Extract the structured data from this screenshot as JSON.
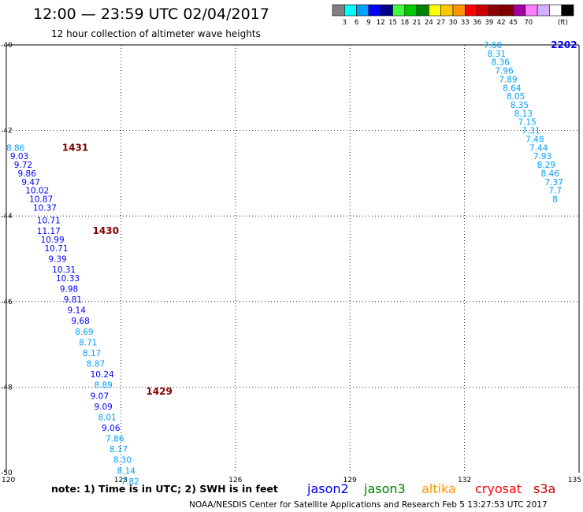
{
  "header": {
    "title": "12:00 — 23:59 UTC 02/04/2017",
    "subtitle": "12 hour collection of altimeter wave heights"
  },
  "color_scale": {
    "colors": [
      "#808080",
      "#00ffff",
      "#00a0ff",
      "#0000ff",
      "#00008b",
      "#40ff40",
      "#00c800",
      "#008200",
      "#ffff00",
      "#ffc800",
      "#ff9600",
      "#ff0000",
      "#c80000",
      "#8b0000",
      "#800000",
      "#a000a0",
      "#ff80ff",
      "#d0b0ff",
      "#ffffff",
      "#000000"
    ],
    "labels": [
      "3",
      "6",
      "9",
      "12",
      "15",
      "18",
      "21",
      "24",
      "27",
      "30",
      "33",
      "36",
      "39",
      "42",
      "45",
      "70"
    ],
    "unit": "(ft)"
  },
  "map": {
    "lat_labels": [
      "-40",
      "-42",
      "-44",
      "-46",
      "-48",
      "-50"
    ],
    "lon_labels": [
      "120",
      "123",
      "126",
      "129",
      "132",
      "135"
    ]
  },
  "passes": [
    {
      "label": "2202",
      "color": "#0000ff",
      "lat": -40.0,
      "lon": 133.6
    },
    {
      "label": "1431",
      "color": "#800000",
      "lat": -42.4,
      "lon": 120.8
    },
    {
      "label": "1430",
      "color": "#800000",
      "lat": -44.35,
      "lon": 121.6
    },
    {
      "label": "1429",
      "color": "#800000",
      "lat": -48.1,
      "lon": 123.0
    }
  ],
  "chart_data": {
    "type": "scatter",
    "title": "12:00 — 23:59 UTC 02/04/2017",
    "subtitle": "12 hour collection of altimeter wave heights",
    "xlim": [
      120,
      135
    ],
    "ylim": [
      -50,
      -40
    ],
    "series": [
      {
        "name": "2202",
        "points": [
          {
            "lat": -40.0,
            "lon": 132.5,
            "v": "7.60",
            "c": "#00a0ff"
          },
          {
            "lat": -40.2,
            "lon": 132.6,
            "v": "8.31",
            "c": "#00a0ff"
          },
          {
            "lat": -40.4,
            "lon": 132.7,
            "v": "8.36",
            "c": "#00a0ff"
          },
          {
            "lat": -40.6,
            "lon": 132.8,
            "v": "7.96",
            "c": "#00a0ff"
          },
          {
            "lat": -40.8,
            "lon": 132.9,
            "v": "7.89",
            "c": "#00a0ff"
          },
          {
            "lat": -41.0,
            "lon": 133.0,
            "v": "8.64",
            "c": "#00a0ff"
          },
          {
            "lat": -41.2,
            "lon": 133.1,
            "v": "8.05",
            "c": "#00a0ff"
          },
          {
            "lat": -41.4,
            "lon": 133.2,
            "v": "8.35",
            "c": "#00a0ff"
          },
          {
            "lat": -41.6,
            "lon": 133.3,
            "v": "8.13",
            "c": "#00a0ff"
          },
          {
            "lat": -41.8,
            "lon": 133.4,
            "v": "7.15",
            "c": "#00a0ff"
          },
          {
            "lat": -42.0,
            "lon": 133.5,
            "v": "7.31",
            "c": "#00a0ff"
          },
          {
            "lat": -42.2,
            "lon": 133.6,
            "v": "7.48",
            "c": "#00a0ff"
          },
          {
            "lat": -42.4,
            "lon": 133.7,
            "v": "7.44",
            "c": "#00a0ff"
          },
          {
            "lat": -42.6,
            "lon": 133.8,
            "v": "7.93",
            "c": "#00a0ff"
          },
          {
            "lat": -42.8,
            "lon": 133.9,
            "v": "8.29",
            "c": "#00a0ff"
          },
          {
            "lat": -43.0,
            "lon": 134.0,
            "v": "8.46",
            "c": "#00a0ff"
          },
          {
            "lat": -43.2,
            "lon": 134.1,
            "v": "7.37",
            "c": "#00a0ff"
          },
          {
            "lat": -43.4,
            "lon": 134.2,
            "v": "7.7",
            "c": "#00a0ff"
          },
          {
            "lat": -43.6,
            "lon": 134.3,
            "v": "8",
            "c": "#00a0ff"
          }
        ]
      },
      {
        "name": "1431",
        "points": [
          {
            "lat": -42.4,
            "lon": 120.0,
            "v": "8.86",
            "c": "#00a0ff"
          },
          {
            "lat": -42.6,
            "lon": 120.1,
            "v": "9.03",
            "c": "#0000ff"
          },
          {
            "lat": -42.8,
            "lon": 120.2,
            "v": "9.72",
            "c": "#0000ff"
          },
          {
            "lat": -43.0,
            "lon": 120.3,
            "v": "9.86",
            "c": "#0000ff"
          },
          {
            "lat": -43.2,
            "lon": 120.4,
            "v": "9.47",
            "c": "#0000ff"
          },
          {
            "lat": -43.4,
            "lon": 120.5,
            "v": "10.02",
            "c": "#0000ff"
          },
          {
            "lat": -43.6,
            "lon": 120.6,
            "v": "10.87",
            "c": "#0000ff"
          },
          {
            "lat": -43.8,
            "lon": 120.7,
            "v": "10.37",
            "c": "#0000ff"
          },
          {
            "lat": -44.1,
            "lon": 120.8,
            "v": "10.71",
            "c": "#0000ff"
          }
        ]
      },
      {
        "name": "1430",
        "points": [
          {
            "lat": -44.35,
            "lon": 120.8,
            "v": "11.17",
            "c": "#0000ff"
          },
          {
            "lat": -44.55,
            "lon": 120.9,
            "v": "10.99",
            "c": "#0000ff"
          },
          {
            "lat": -44.75,
            "lon": 121.0,
            "v": "10.71",
            "c": "#0000ff"
          },
          {
            "lat": -45.0,
            "lon": 121.1,
            "v": "9.39",
            "c": "#0000ff"
          },
          {
            "lat": -45.25,
            "lon": 121.2,
            "v": "10.31",
            "c": "#0000ff"
          },
          {
            "lat": -45.45,
            "lon": 121.3,
            "v": "10.33",
            "c": "#0000ff"
          },
          {
            "lat": -45.7,
            "lon": 121.4,
            "v": "9.98",
            "c": "#0000ff"
          },
          {
            "lat": -45.95,
            "lon": 121.5,
            "v": "9.81",
            "c": "#0000ff"
          },
          {
            "lat": -46.2,
            "lon": 121.6,
            "v": "9.14",
            "c": "#0000ff"
          },
          {
            "lat": -46.45,
            "lon": 121.7,
            "v": "9.68",
            "c": "#0000ff"
          },
          {
            "lat": -46.7,
            "lon": 121.8,
            "v": "8.69",
            "c": "#00a0ff"
          },
          {
            "lat": -46.95,
            "lon": 121.9,
            "v": "8.71",
            "c": "#00a0ff"
          },
          {
            "lat": -47.2,
            "lon": 122.0,
            "v": "8.17",
            "c": "#00a0ff"
          },
          {
            "lat": -47.45,
            "lon": 122.1,
            "v": "8.87",
            "c": "#00a0ff"
          },
          {
            "lat": -47.7,
            "lon": 122.2,
            "v": "10.24",
            "c": "#0000ff"
          },
          {
            "lat": -47.95,
            "lon": 122.3,
            "v": "8.89",
            "c": "#00a0ff"
          }
        ]
      },
      {
        "name": "1429",
        "points": [
          {
            "lat": -48.2,
            "lon": 122.2,
            "v": "9.07",
            "c": "#0000ff"
          },
          {
            "lat": -48.45,
            "lon": 122.3,
            "v": "9.09",
            "c": "#0000ff"
          },
          {
            "lat": -48.7,
            "lon": 122.4,
            "v": "8.01",
            "c": "#00a0ff"
          },
          {
            "lat": -48.95,
            "lon": 122.5,
            "v": "9.06",
            "c": "#0000ff"
          },
          {
            "lat": -49.2,
            "lon": 122.6,
            "v": "7.86",
            "c": "#00a0ff"
          },
          {
            "lat": -49.45,
            "lon": 122.7,
            "v": "8.17",
            "c": "#00a0ff"
          },
          {
            "lat": -49.7,
            "lon": 122.8,
            "v": "8.30",
            "c": "#00a0ff"
          },
          {
            "lat": -49.95,
            "lon": 122.9,
            "v": "8.14",
            "c": "#00a0ff"
          },
          {
            "lat": -50.2,
            "lon": 123.0,
            "v": "7.82",
            "c": "#00a0ff"
          }
        ]
      }
    ]
  },
  "footer": {
    "note": "note:  1) Time is in UTC;  2) SWH is in feet",
    "satellites": [
      {
        "name": "jason2",
        "color": "#0000ff"
      },
      {
        "name": "jason3",
        "color": "#008200"
      },
      {
        "name": "altika",
        "color": "#ff9600"
      },
      {
        "name": "cryosat",
        "color": "#ff0000"
      },
      {
        "name": "s3a",
        "color": "#c80000"
      }
    ],
    "credit": "NOAA/NESDIS Center for Satellite Applications and Research     Feb  5 13:27:53 UTC 2017"
  }
}
